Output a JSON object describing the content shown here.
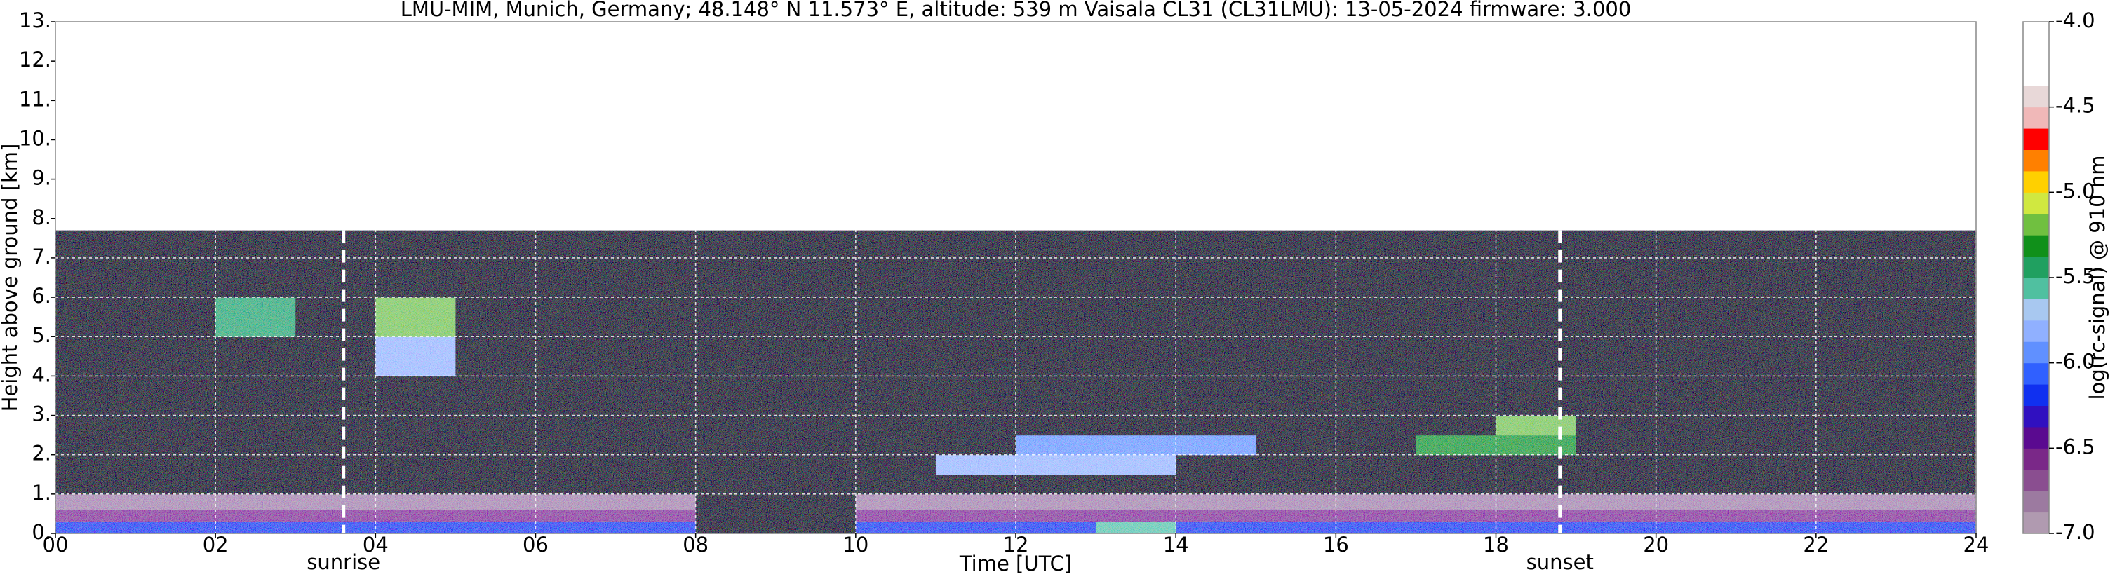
{
  "chart_data": {
    "type": "heatmap",
    "title": "LMU-MIM, Munich, Germany; 48.148° N 11.573° E, altitude: 539 m    Vaisala CL31 (CL31LMU): 13-05-2024    firmware: 3.000",
    "xlabel": "Time [UTC]",
    "ylabel": "Height above ground [km]",
    "colorbar_label": "log(rc-signal) @ 910 nm",
    "xlim": [
      0,
      24
    ],
    "xticks": [
      {
        "value": 0,
        "label": "00"
      },
      {
        "value": 2,
        "label": "02"
      },
      {
        "value": 4,
        "label": "04"
      },
      {
        "value": 6,
        "label": "06"
      },
      {
        "value": 8,
        "label": "08"
      },
      10,
      12,
      14,
      16,
      18,
      20,
      22,
      24
    ],
    "ylim": [
      0,
      13
    ],
    "yticks": [
      {
        "value": 0,
        "label": "0."
      },
      {
        "value": 1,
        "label": "1."
      },
      {
        "value": 2,
        "label": "2."
      },
      {
        "value": 3,
        "label": "3."
      },
      {
        "value": 4,
        "label": "4."
      },
      {
        "value": 5,
        "label": "5."
      },
      {
        "value": 6,
        "label": "6."
      },
      {
        "value": 7,
        "label": "7."
      },
      {
        "value": 8,
        "label": "8."
      },
      {
        "value": 9,
        "label": "9."
      },
      {
        "value": 10,
        "label": "10."
      },
      {
        "value": 11,
        "label": "11."
      },
      {
        "value": 12,
        "label": "12."
      },
      {
        "value": 13,
        "label": "13."
      }
    ],
    "clim": [
      -7,
      -4
    ],
    "cticks": [
      {
        "value": -7,
        "label": "-7.0"
      },
      {
        "value": -6.5,
        "label": "-6.5"
      },
      {
        "value": -6,
        "label": "-6.0"
      },
      {
        "value": -5.5,
        "label": "-5.5"
      },
      {
        "value": -5,
        "label": "-5.0"
      },
      {
        "value": -4.5,
        "label": "-4.5"
      },
      {
        "value": -4,
        "label": "-4.0"
      }
    ],
    "colors": [
      "#b09ab0",
      "#9c7aa0",
      "#8a4e90",
      "#7a2888",
      "#5a0a90",
      "#3010c0",
      "#1030f0",
      "#3060ff",
      "#6090ff",
      "#90b0ff",
      "#a8c8f0",
      "#50c0a0",
      "#20a060",
      "#10901a",
      "#70c040",
      "#d0e840",
      "#ffd000",
      "#ff8000",
      "#ff0000",
      "#f0b8b8",
      "#e8d8d8",
      "#ffffff",
      "#ffffff",
      "#ffffff"
    ],
    "under_color": "#000000",
    "grid": true,
    "xbins": [
      0,
      1,
      2,
      3,
      4,
      5,
      6,
      7,
      8,
      9,
      10,
      11,
      12,
      13,
      14,
      15,
      16,
      17,
      18,
      19,
      20,
      21,
      22,
      23,
      24
    ],
    "ybins": [
      0,
      0.3,
      0.6,
      1,
      1.5,
      2,
      2.5,
      3,
      4,
      5,
      6,
      7.7
    ],
    "z": [
      [
        -6.2,
        -6.2,
        -6.2,
        -6.2,
        -6.2,
        -6.2,
        -6.2,
        -6.2,
        -7.5,
        -7.5,
        -6.2,
        -6.2,
        -6.2,
        -5.6,
        -6.2,
        -6.2,
        -6.2,
        -6.2,
        -6.2,
        -6.2,
        -6.2,
        -6.2,
        -6.2,
        -6.2
      ],
      [
        -6.6,
        -6.6,
        -6.6,
        -6.6,
        -6.6,
        -6.6,
        -6.6,
        -6.6,
        -7.5,
        -7.5,
        -6.6,
        -6.6,
        -6.6,
        -6.6,
        -6.6,
        -6.6,
        -6.6,
        -6.6,
        -6.6,
        -6.6,
        -6.6,
        -6.6,
        -6.6,
        -6.6
      ],
      [
        -6.8,
        -6.8,
        -6.8,
        -6.8,
        -6.8,
        -6.8,
        -6.8,
        -6.8,
        -7.5,
        -7.5,
        -6.8,
        -6.8,
        -6.8,
        -6.8,
        -6.8,
        -6.8,
        -6.8,
        -6.8,
        -6.8,
        -6.8,
        -6.8,
        -6.8,
        -6.8,
        -6.8
      ],
      [
        -7.1,
        -7.1,
        -7.1,
        -7.1,
        -7.1,
        -7.1,
        -7.1,
        -7.1,
        -7.5,
        -7.5,
        -7.1,
        -7.1,
        -7.1,
        -7.1,
        -7.1,
        -7.1,
        -7.1,
        -7.1,
        -7.1,
        -7.1,
        -7.1,
        -7.1,
        -7.1,
        -7.1
      ],
      [
        -7.1,
        -7.1,
        -7.1,
        -7.1,
        -7.1,
        -7.1,
        -7.1,
        -7.1,
        -7.5,
        -7.5,
        -7.1,
        -5.8,
        -5.8,
        -5.8,
        -7.1,
        -7.1,
        -7.1,
        -7.1,
        -7.1,
        -7.1,
        -7.1,
        -7.1,
        -7.1,
        -7.1
      ],
      [
        -7.1,
        -7.1,
        -7.1,
        -7.1,
        -7.1,
        -7.1,
        -7.1,
        -7.1,
        -7.1,
        -7.1,
        -7.1,
        -7.1,
        -5.9,
        -5.9,
        -5.9,
        -7.1,
        -7.1,
        -5.3,
        -5.3,
        -7.1,
        -7.1,
        -7.1,
        -7.1,
        -7.1
      ],
      [
        -7.1,
        -7.1,
        -7.1,
        -7.1,
        -7.1,
        -7.1,
        -7.1,
        -7.1,
        -7.1,
        -7.1,
        -7.1,
        -7.1,
        -7.1,
        -7.1,
        -7.1,
        -7.1,
        -7.1,
        -7.1,
        -5.2,
        -7.1,
        -7.1,
        -7.1,
        -7.1,
        -7.1
      ],
      [
        -7.1,
        -7.1,
        -7.1,
        -7.1,
        -7.1,
        -7.1,
        -7.1,
        -7.1,
        -7.1,
        -7.1,
        -7.1,
        -7.1,
        -7.1,
        -7.1,
        -7.1,
        -7.1,
        -7.1,
        -7.1,
        -7.1,
        -7.1,
        -7.1,
        -7.1,
        -7.1,
        -7.1
      ],
      [
        -7.1,
        -7.1,
        -7.1,
        -7.1,
        -5.8,
        -7.1,
        -7.1,
        -7.1,
        -7.1,
        -7.1,
        -7.1,
        -7.1,
        -7.1,
        -7.1,
        -7.1,
        -7.1,
        -7.1,
        -7.1,
        -7.1,
        -7.1,
        -7.1,
        -7.1,
        -7.1,
        -7.1
      ],
      [
        -7.1,
        -7.1,
        -5.4,
        -7.1,
        -5.2,
        -7.1,
        -7.1,
        -7.1,
        -7.1,
        -7.1,
        -7.1,
        -7.1,
        -7.1,
        -7.1,
        -7.1,
        -7.1,
        -7.1,
        -7.1,
        -7.1,
        -7.1,
        -7.1,
        -7.1,
        -7.1,
        -7.1
      ],
      [
        -7.1,
        -7.1,
        -7.1,
        -7.1,
        -7.1,
        -7.1,
        -7.1,
        -7.1,
        -7.1,
        -7.1,
        -7.1,
        -7.1,
        -7.1,
        -7.1,
        -7.1,
        -7.1,
        -7.1,
        -7.1,
        -7.1,
        -7.1,
        -7.1,
        -7.1,
        -7.1,
        -7.1
      ]
    ],
    "annotations": [
      {
        "text": "sunrise",
        "x": 3.6
      },
      {
        "text": "sunset",
        "x": 18.8
      }
    ]
  }
}
